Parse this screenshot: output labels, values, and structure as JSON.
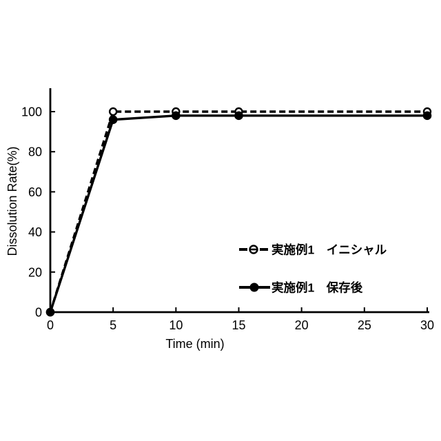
{
  "chart_data": {
    "type": "line",
    "title": "",
    "xlabel": "Time (min)",
    "ylabel": "Dissolution Rate(%)",
    "xlim": [
      0,
      30
    ],
    "ylim": [
      0,
      110
    ],
    "x_ticks": [
      0,
      5,
      10,
      15,
      20,
      25,
      30
    ],
    "y_ticks": [
      0,
      20,
      40,
      60,
      80,
      100
    ],
    "grid": false,
    "legend_position": "inside-right-middle",
    "x": [
      0,
      5,
      10,
      15,
      30
    ],
    "series": [
      {
        "name": "実施例1　イニシャル",
        "values": [
          0,
          100,
          100,
          100,
          100
        ],
        "line_style": "dashed",
        "marker": "open-circle",
        "color": "#000000"
      },
      {
        "name": "実施例1　保存後",
        "values": [
          0,
          96,
          98,
          98,
          98
        ],
        "line_style": "solid",
        "marker": "filled-circle",
        "color": "#000000"
      }
    ]
  },
  "colors": {
    "background": "#ffffff",
    "ink": "#000000"
  }
}
